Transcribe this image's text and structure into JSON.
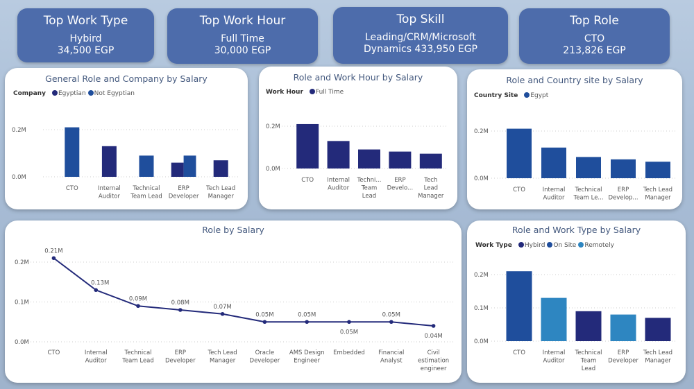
{
  "kpis": [
    {
      "title": "Top Work Type",
      "lines": [
        "Hybird",
        "34,500 EGP"
      ]
    },
    {
      "title": "Top Work Hour",
      "lines": [
        "Full Time",
        "30,000 EGP"
      ]
    },
    {
      "title": "Top Skill",
      "lines": [
        "Leading/CRM/Microsoft",
        "Dynamics 433,950 EGP"
      ]
    },
    {
      "title": "Top Role",
      "lines": [
        "CTO",
        "213,826 EGP"
      ]
    }
  ],
  "chart_data": [
    {
      "type": "bar",
      "title": "General Role and Company by Salary",
      "legend_title": "Company",
      "categories": [
        "CTO",
        "Internal Auditor",
        "Technical Team Lead",
        "ERP Developer",
        "Tech Lead Manager"
      ],
      "tick_labels": [
        [
          "CTO"
        ],
        [
          "Internal",
          "Auditor"
        ],
        [
          "Technical",
          "Team Lead"
        ],
        [
          "ERP",
          "Developer"
        ],
        [
          "Tech Lead",
          "Manager"
        ]
      ],
      "series": [
        {
          "name": "Egyptian",
          "color": "#232a7a",
          "values": [
            null,
            0.13,
            null,
            0.06,
            0.07
          ]
        },
        {
          "name": "Not Egyptian",
          "color": "#1f4e9c",
          "values": [
            0.21,
            null,
            0.09,
            0.09,
            null
          ]
        }
      ],
      "yticks": [
        {
          "v": 0,
          "label": "0.0M"
        },
        {
          "v": 0.2,
          "label": "0.2M"
        }
      ],
      "ylim": [
        0,
        0.2
      ],
      "unit": "M EGP",
      "grid": true,
      "legend": "top-left"
    },
    {
      "type": "bar",
      "title": "Role and Work Hour by Salary",
      "legend_title": "Work Hour",
      "categories": [
        "CTO",
        "Internal Auditor",
        "Technical Team Lead",
        "ERP Developer",
        "Tech Lead Manager"
      ],
      "tick_labels": [
        [
          "CTO"
        ],
        [
          "Internal",
          "Auditor"
        ],
        [
          "Techni...",
          "Team",
          "Lead"
        ],
        [
          "ERP",
          "Develo..."
        ],
        [
          "Tech",
          "Lead",
          "Manager"
        ]
      ],
      "series": [
        {
          "name": "Full Time",
          "color": "#232a7a",
          "values": [
            0.21,
            0.13,
            0.09,
            0.08,
            0.07
          ]
        }
      ],
      "yticks": [
        {
          "v": 0,
          "label": "0.0M"
        },
        {
          "v": 0.2,
          "label": "0.2M"
        }
      ],
      "ylim": [
        0,
        0.2
      ],
      "grid": true,
      "legend": "top-left"
    },
    {
      "type": "bar",
      "title": "Role and Country site by Salary",
      "legend_title": "Country Site",
      "categories": [
        "CTO",
        "Internal Auditor",
        "Technical Team Lead",
        "ERP Developer",
        "Tech Lead Manager"
      ],
      "tick_labels": [
        [
          "CTO"
        ],
        [
          "Internal",
          "Auditor"
        ],
        [
          "Technical",
          "Team Le..."
        ],
        [
          "ERP",
          "Develop..."
        ],
        [
          "Tech Lead",
          "Manager"
        ]
      ],
      "series": [
        {
          "name": "Egypt",
          "color": "#1f4e9c",
          "values": [
            0.21,
            0.13,
            0.09,
            0.08,
            0.07
          ]
        }
      ],
      "yticks": [
        {
          "v": 0,
          "label": "0.0M"
        },
        {
          "v": 0.2,
          "label": "0.2M"
        }
      ],
      "ylim": [
        0,
        0.2
      ],
      "grid": true,
      "legend": "top-left"
    },
    {
      "type": "line",
      "title": "Role by Salary",
      "categories": [
        "CTO",
        "Internal Auditor",
        "Technical Team Lead",
        "ERP Developer",
        "Tech Lead Manager",
        "Oracle Developer",
        "AMS Design Engineer",
        "Embedded",
        "Financial Analyst",
        "Civil estimation engineer"
      ],
      "tick_labels": [
        [
          "CTO"
        ],
        [
          "Internal",
          "Auditor"
        ],
        [
          "Technical",
          "Team Lead"
        ],
        [
          "ERP",
          "Developer"
        ],
        [
          "Tech Lead",
          "Manager"
        ],
        [
          "Oracle",
          "Developer"
        ],
        [
          "AMS Design",
          "Engineer"
        ],
        [
          "Embedded"
        ],
        [
          "Financial",
          "Analyst"
        ],
        [
          "Civil",
          "estimation",
          "engineer"
        ]
      ],
      "series": [
        {
          "color": "#232a7a",
          "values": [
            0.21,
            0.13,
            0.09,
            0.08,
            0.07,
            0.05,
            0.05,
            0.05,
            0.05,
            0.04
          ]
        }
      ],
      "data_labels": [
        "0.21M",
        "0.13M",
        "0.09M",
        "0.08M",
        "0.07M",
        "0.05M",
        "0.05M",
        "0.05M",
        "0.05M",
        "0.04M"
      ],
      "yticks": [
        {
          "v": 0,
          "label": "0.0M"
        },
        {
          "v": 0.1,
          "label": "0.1M"
        },
        {
          "v": 0.2,
          "label": "0.2M"
        }
      ],
      "ylim": [
        0,
        0.2
      ],
      "grid": true
    },
    {
      "type": "bar",
      "title": "Role and Work Type by Salary",
      "legend_title": "Work Type",
      "categories": [
        "CTO",
        "Internal Auditor",
        "Technical Team Lead",
        "ERP Developer",
        "Tech Lead Manager"
      ],
      "tick_labels": [
        [
          "CTO"
        ],
        [
          "Internal",
          "Auditor"
        ],
        [
          "Technical",
          "Team",
          "Lead"
        ],
        [
          "ERP",
          "Developer"
        ],
        [
          "Tech Lead",
          "Manager"
        ]
      ],
      "series": [
        {
          "name": "Hybird",
          "color": "#232a7a",
          "values": [
            null,
            null,
            0.09,
            null,
            0.07
          ]
        },
        {
          "name": "On Site",
          "color": "#1f4e9c",
          "values": [
            0.21,
            null,
            null,
            null,
            null
          ]
        },
        {
          "name": "Remotely",
          "color": "#2e86c1",
          "values": [
            null,
            0.13,
            null,
            0.08,
            null
          ]
        }
      ],
      "yticks": [
        {
          "v": 0,
          "label": "0.0M"
        },
        {
          "v": 0.1,
          "label": "0.1M"
        },
        {
          "v": 0.2,
          "label": "0.2M"
        }
      ],
      "ylim": [
        0,
        0.2
      ],
      "grid": true,
      "legend": "top-left"
    }
  ]
}
